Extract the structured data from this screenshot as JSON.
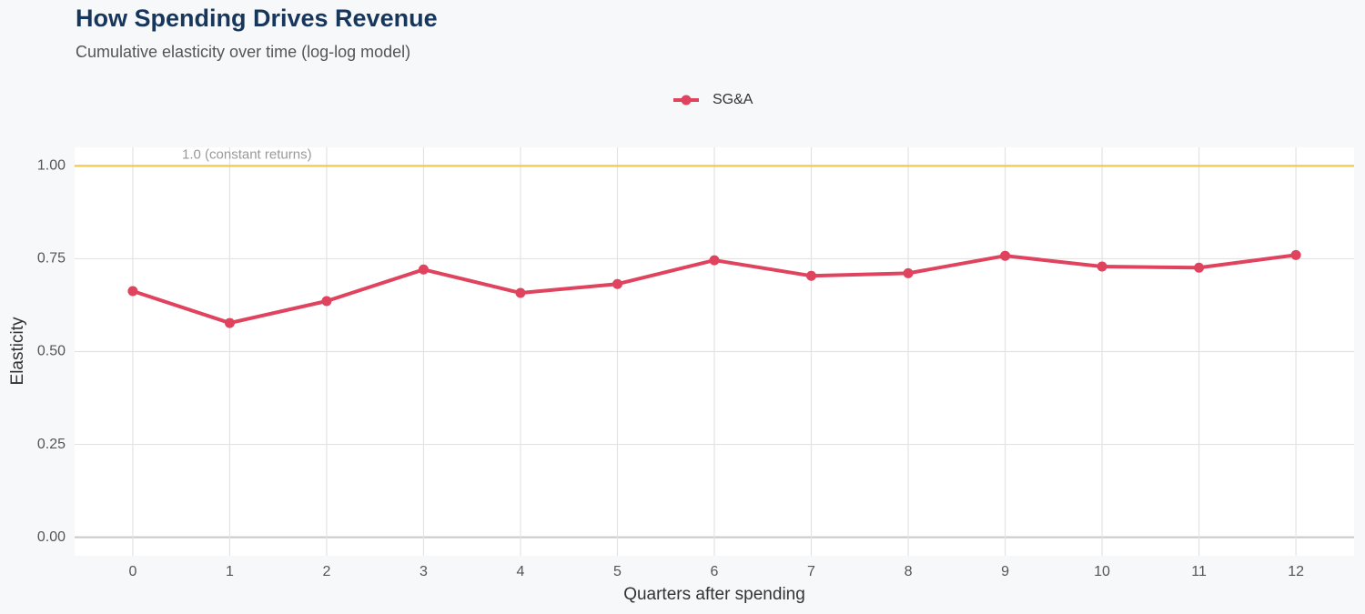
{
  "chart_data": {
    "type": "line",
    "title": "How Spending Drives Revenue",
    "subtitle": "Cumulative elasticity over time (log-log model)",
    "x_label": "Quarters after spending",
    "y_label": "Elasticity",
    "x": [
      0,
      1,
      2,
      3,
      4,
      5,
      6,
      7,
      8,
      9,
      10,
      11,
      12
    ],
    "series": [
      {
        "name": "SG&A",
        "color": "#e0435e",
        "values": [
          0.663,
          0.577,
          0.636,
          0.721,
          0.658,
          0.682,
          0.746,
          0.704,
          0.711,
          0.758,
          0.729,
          0.726,
          0.76
        ]
      }
    ],
    "xlim": [
      -0.6,
      12.6
    ],
    "xticks": [
      0,
      1,
      2,
      3,
      4,
      5,
      6,
      7,
      8,
      9,
      10,
      11,
      12
    ],
    "ylim": [
      -0.05,
      1.05
    ],
    "yticks": [
      {
        "value": 0,
        "label": "0.00"
      },
      {
        "value": 0.25,
        "label": "0.25"
      },
      {
        "value": 0.5,
        "label": "0.50"
      },
      {
        "value": 0.75,
        "label": "0.75"
      },
      {
        "value": 1,
        "label": "1.00"
      }
    ],
    "grid": true,
    "legend": "top",
    "reference_line": {
      "value": 1,
      "label": "1.0 (constant returns)",
      "color": "#f2c94c"
    }
  }
}
